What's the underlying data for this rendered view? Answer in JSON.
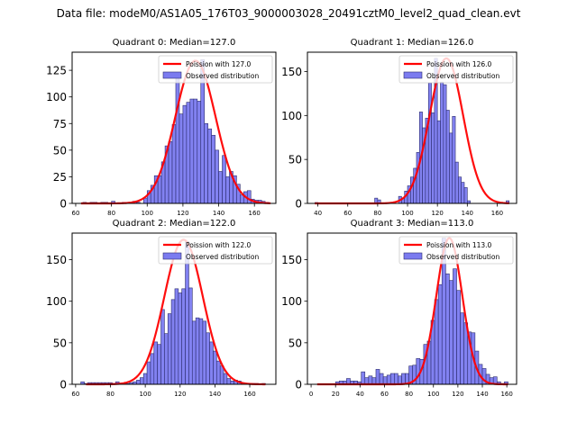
{
  "figure": {
    "suptitle": "Data file: modeM0/AS1A05_176T03_9000003028_20491cztM0_level2_quad_clean.evt"
  },
  "chart_data": [
    {
      "type": "bar",
      "title": "Quadrant 0: Median=127.0",
      "xlabel": "",
      "ylabel": "",
      "xlim": [
        58,
        172
      ],
      "ylim": [
        0,
        142
      ],
      "xticks": [
        60,
        80,
        100,
        120,
        140,
        160
      ],
      "yticks": [
        0,
        25,
        50,
        75,
        100,
        125
      ],
      "grid": false,
      "legend": {
        "placement": "top-right",
        "entries": [
          "Poission with 127.0",
          "Observed distribution"
        ]
      },
      "bin_width": 2,
      "bin_starts": [
        64,
        66,
        68,
        70,
        72,
        74,
        76,
        78,
        80,
        82,
        84,
        86,
        88,
        90,
        92,
        94,
        96,
        98,
        100,
        102,
        104,
        106,
        108,
        110,
        112,
        114,
        116,
        118,
        120,
        122,
        124,
        126,
        128,
        130,
        132,
        134,
        136,
        138,
        140,
        142,
        144,
        146,
        148,
        150,
        152,
        154,
        156,
        158,
        160,
        162,
        164,
        166
      ],
      "values": [
        1,
        0,
        1,
        1,
        0,
        1,
        1,
        0,
        2,
        0,
        0,
        1,
        1,
        1,
        2,
        1,
        0,
        5,
        12,
        17,
        26,
        26,
        39,
        54,
        58,
        74,
        121,
        84,
        92,
        95,
        98,
        98,
        96,
        135,
        75,
        70,
        64,
        50,
        30,
        45,
        25,
        30,
        26,
        18,
        8,
        11,
        12,
        4,
        3,
        3,
        2,
        1
      ],
      "curve": {
        "name": "Poission with 127.0",
        "mu": 127.0,
        "peak": 134,
        "x_range": [
          63,
          169
        ]
      }
    },
    {
      "type": "bar",
      "title": "Quadrant 1: Median=126.0",
      "xlabel": "",
      "ylabel": "",
      "xlim": [
        33,
        173
      ],
      "ylim": [
        0,
        172
      ],
      "xticks": [
        40,
        60,
        80,
        100,
        120,
        140,
        160
      ],
      "yticks": [
        0,
        50,
        100,
        150
      ],
      "grid": false,
      "legend": {
        "placement": "top-right",
        "entries": [
          "Poission with 126.0",
          "Observed distribution"
        ]
      },
      "bin_width": 2,
      "bin_starts": [
        38,
        40,
        42,
        44,
        46,
        48,
        50,
        52,
        54,
        56,
        58,
        60,
        62,
        64,
        66,
        68,
        70,
        72,
        74,
        76,
        78,
        80,
        82,
        84,
        86,
        88,
        90,
        92,
        94,
        96,
        98,
        100,
        102,
        104,
        106,
        108,
        110,
        112,
        114,
        116,
        118,
        120,
        122,
        124,
        126,
        128,
        130,
        132,
        134,
        136,
        138,
        140,
        142,
        144,
        146,
        148,
        150,
        152,
        154,
        156,
        158,
        160,
        162,
        164,
        166
      ],
      "values": [
        1,
        0,
        0,
        0,
        0,
        0,
        0,
        0,
        0,
        0,
        0,
        0,
        0,
        0,
        0,
        0,
        0,
        0,
        0,
        0,
        6,
        4,
        0,
        0,
        0,
        0,
        0,
        0,
        8,
        6,
        14,
        20,
        30,
        40,
        58,
        104,
        86,
        97,
        137,
        103,
        165,
        94,
        138,
        135,
        106,
        80,
        99,
        47,
        30,
        24,
        18,
        3,
        0,
        0,
        0,
        0,
        0,
        0,
        0,
        0,
        0,
        0,
        0,
        0,
        3
      ],
      "curve": {
        "name": "Poission with 126.0",
        "mu": 126.0,
        "peak": 165,
        "x_range": [
          38,
          168
        ]
      }
    },
    {
      "type": "bar",
      "title": "Quadrant 2: Median=122.0",
      "xlabel": "",
      "ylabel": "",
      "xlim": [
        58,
        175
      ],
      "ylim": [
        0,
        182
      ],
      "xticks": [
        60,
        80,
        100,
        120,
        140,
        160
      ],
      "yticks": [
        0,
        50,
        100,
        150
      ],
      "grid": false,
      "legend": {
        "placement": "top-right",
        "entries": [
          "Poission with 122.0",
          "Observed distribution"
        ]
      },
      "bin_width": 2,
      "bin_starts": [
        63,
        65,
        67,
        69,
        71,
        73,
        75,
        77,
        79,
        81,
        83,
        85,
        87,
        89,
        91,
        93,
        95,
        97,
        99,
        101,
        103,
        105,
        107,
        109,
        111,
        113,
        115,
        117,
        119,
        121,
        123,
        125,
        127,
        129,
        131,
        133,
        135,
        137,
        139,
        141,
        143,
        145,
        147,
        149,
        151,
        153,
        155,
        157,
        159,
        161,
        163,
        165,
        167
      ],
      "values": [
        3,
        1,
        2,
        2,
        2,
        2,
        2,
        2,
        2,
        1,
        3,
        1,
        1,
        1,
        2,
        3,
        5,
        8,
        13,
        27,
        37,
        51,
        48,
        90,
        61,
        85,
        102,
        115,
        110,
        115,
        172,
        116,
        76,
        80,
        79,
        76,
        62,
        51,
        40,
        28,
        22,
        13,
        7,
        4,
        5,
        4,
        2,
        1,
        1,
        1,
        1,
        0,
        1
      ],
      "curve": {
        "name": "Poission with 122.0",
        "mu": 122.0,
        "peak": 174,
        "x_range": [
          66,
          169
        ]
      }
    },
    {
      "type": "bar",
      "title": "Quadrant 3: Median=113.0",
      "xlabel": "",
      "ylabel": "",
      "xlim": [
        -3,
        168
      ],
      "ylim": [
        0,
        182
      ],
      "xticks": [
        0,
        20,
        40,
        60,
        80,
        100,
        120,
        140,
        160
      ],
      "yticks": [
        0,
        50,
        100,
        150
      ],
      "grid": false,
      "legend": {
        "placement": "top-right",
        "entries": [
          "Poission with 113.0",
          "Observed distribution"
        ]
      },
      "bin_width": 3,
      "bin_starts": [
        20,
        23,
        26,
        29,
        32,
        35,
        38,
        41,
        44,
        47,
        50,
        53,
        56,
        59,
        62,
        65,
        68,
        71,
        74,
        77,
        80,
        83,
        86,
        89,
        92,
        95,
        98,
        101,
        104,
        107,
        110,
        113,
        116,
        119,
        122,
        125,
        128,
        131,
        134,
        137,
        140,
        143,
        146,
        149,
        152,
        155,
        158
      ],
      "values": [
        3,
        4,
        4,
        7,
        4,
        4,
        3,
        15,
        8,
        10,
        8,
        18,
        13,
        9,
        11,
        13,
        13,
        10,
        13,
        13,
        22,
        23,
        31,
        30,
        48,
        52,
        77,
        102,
        120,
        176,
        133,
        125,
        139,
        113,
        86,
        74,
        63,
        62,
        40,
        24,
        19,
        12,
        8,
        9,
        3,
        1,
        3
      ],
      "curve": {
        "name": "Poission with 113.0",
        "mu": 113.0,
        "peak": 176,
        "x_range": [
          5,
          161
        ]
      }
    }
  ],
  "colors": {
    "bar_fill": "#7b7bf0",
    "bar_edge": "#2c2c6e",
    "curve": "#ff0000"
  }
}
